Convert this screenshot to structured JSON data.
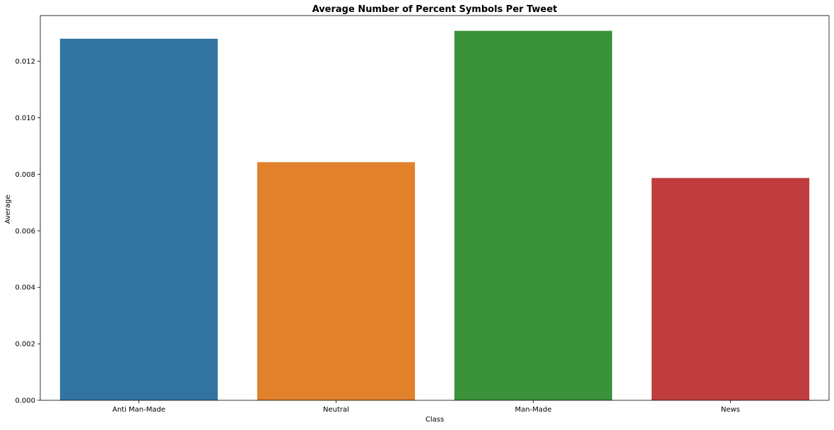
{
  "chart_data": {
    "type": "bar",
    "title": "Average Number of Percent Symbols Per Tweet",
    "xlabel": "Class",
    "ylabel": "Average",
    "categories": [
      "Anti Man-Made",
      "Neutral",
      "Man-Made",
      "News"
    ],
    "values": [
      0.0128,
      0.00843,
      0.01308,
      0.00787
    ],
    "colors": [
      "#3274a1",
      "#e1812c",
      "#3a923a",
      "#c03d3e"
    ],
    "ylim": [
      0,
      0.01362
    ],
    "yticks": [
      0,
      0.002,
      0.004,
      0.006,
      0.008,
      0.01,
      0.012
    ],
    "ytick_labels": [
      "0.000",
      "0.002",
      "0.004",
      "0.006",
      "0.008",
      "0.010",
      "0.012"
    ],
    "grid": false,
    "legend": "none"
  }
}
